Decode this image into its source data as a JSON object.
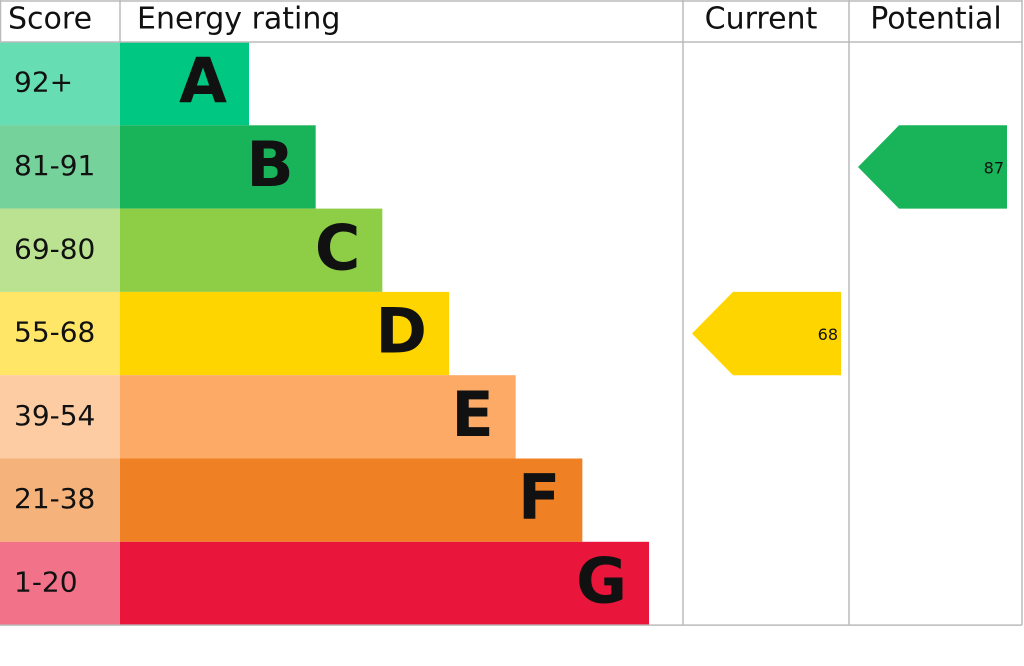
{
  "chart_data": {
    "type": "epc",
    "headers": {
      "score": "Score",
      "rating": "Energy rating",
      "current": "Current",
      "potential": "Potential"
    },
    "bands": [
      {
        "score": "92+",
        "letter": "A",
        "color": "#00c781"
      },
      {
        "score": "81-91",
        "letter": "B",
        "color": "#19b459"
      },
      {
        "score": "69-80",
        "letter": "C",
        "color": "#8dce46"
      },
      {
        "score": "55-68",
        "letter": "D",
        "color": "#ffd500"
      },
      {
        "score": "39-54",
        "letter": "E",
        "color": "#fcaa65"
      },
      {
        "score": "21-38",
        "letter": "F",
        "color": "#ef8023"
      },
      {
        "score": "1-20",
        "letter": "G",
        "color": "#e9153b"
      }
    ],
    "current": 68,
    "potential": 87
  }
}
